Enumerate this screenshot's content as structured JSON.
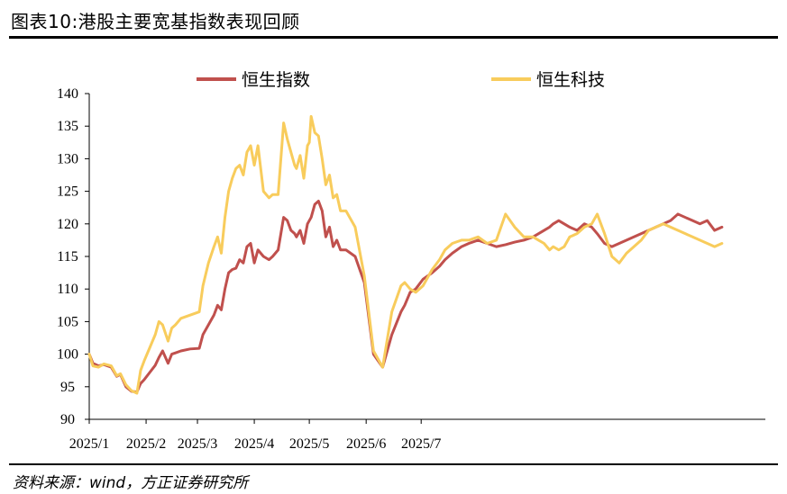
{
  "header": {
    "title": "图表10:港股主要宽基指数表现回顾"
  },
  "footer": {
    "source": "资料来源：wind，方正证券研究所"
  },
  "chart_data": {
    "type": "line",
    "title": "图表10:港股主要宽基指数表现回顾",
    "xlabel": "",
    "ylabel": "",
    "ylim": [
      90,
      140
    ],
    "yticks": [
      90,
      95,
      100,
      105,
      110,
      115,
      120,
      125,
      130,
      135,
      140
    ],
    "xticks": [
      "2025/1",
      "2025/2",
      "2025/3",
      "2025/4",
      "2025/5",
      "2025/6",
      "2025/7"
    ],
    "legend_position": "top",
    "grid": false,
    "colors": {
      "hsi": "#c0504d",
      "hstech": "#f8cc5c",
      "axis": "#000000"
    },
    "series": [
      {
        "name": "恒生指数",
        "color": "#c0504d",
        "x": [
          0,
          2,
          5,
          8,
          12,
          15,
          17,
          20,
          23,
          26,
          28,
          30,
          33,
          36,
          38,
          40,
          43,
          45,
          47,
          50,
          55,
          60,
          62,
          65,
          68,
          70,
          72,
          74,
          76,
          78,
          80,
          82,
          84,
          86,
          88,
          90,
          92,
          95,
          98,
          100,
          103,
          106,
          108,
          110,
          112,
          113,
          115,
          117,
          119,
          120,
          121,
          123,
          125,
          127,
          129,
          131,
          133,
          135,
          137,
          140,
          145,
          150,
          155,
          160,
          165,
          170,
          172,
          175,
          178,
          182,
          187,
          191,
          194,
          198,
          203,
          207,
          212,
          217,
          222,
          227,
          232,
          237,
          242,
          245,
          248,
          251,
          253,
          256,
          259,
          262,
          266,
          270,
          274,
          277,
          281,
          285,
          289,
          293,
          297,
          301,
          305,
          309,
          313,
          317,
          321,
          325,
          329,
          333,
          337,
          341,
          345
        ],
        "values": [
          100.0,
          98.6,
          98.2,
          98.4,
          98.0,
          96.6,
          96.9,
          95.0,
          94.3,
          94.2,
          95.5,
          96.1,
          97.2,
          98.3,
          99.5,
          100.5,
          98.6,
          100.0,
          100.2,
          100.5,
          100.8,
          100.9,
          103.0,
          104.5,
          106.0,
          107.5,
          106.8,
          110.0,
          112.5,
          113.0,
          113.2,
          114.5,
          114.0,
          116.5,
          117.0,
          114.0,
          116.0,
          115.0,
          114.5,
          115.0,
          116.0,
          121.0,
          120.5,
          119.0,
          118.5,
          118.0,
          119.0,
          117.0,
          120.0,
          120.5,
          121.0,
          123.0,
          123.5,
          122.0,
          118.0,
          119.5,
          116.5,
          117.5,
          116.0,
          116.0,
          115.0,
          111.0,
          100.0,
          98.0,
          103.0,
          106.5,
          107.5,
          109.5,
          110.0,
          111.5,
          112.5,
          113.5,
          114.5,
          115.5,
          116.5,
          117.0,
          117.5,
          117.0,
          116.5,
          116.8,
          117.2,
          117.5,
          118.0,
          118.5,
          119.0,
          119.5,
          120.0,
          120.5,
          120.0,
          119.5,
          119.0,
          120.0,
          119.5,
          118.5,
          117.0,
          116.5,
          117.0,
          117.5,
          118.0,
          118.5,
          119.0,
          119.5,
          120.0,
          120.5,
          121.5,
          121.0,
          120.5,
          120.0,
          120.5,
          119.0,
          119.5
        ],
        "x_note": "days since 2025/1/1"
      },
      {
        "name": "恒生科技",
        "color": "#f8cc5c",
        "x": [
          0,
          2,
          5,
          8,
          12,
          15,
          17,
          20,
          23,
          26,
          28,
          30,
          33,
          36,
          38,
          40,
          43,
          45,
          47,
          50,
          55,
          60,
          62,
          65,
          68,
          70,
          72,
          74,
          76,
          78,
          80,
          82,
          84,
          86,
          88,
          90,
          92,
          95,
          98,
          100,
          103,
          106,
          108,
          110,
          112,
          113,
          115,
          117,
          119,
          120,
          121,
          123,
          125,
          127,
          129,
          131,
          133,
          135,
          137,
          140,
          145,
          150,
          155,
          160,
          165,
          170,
          172,
          175,
          178,
          182,
          187,
          191,
          194,
          198,
          203,
          207,
          212,
          217,
          222,
          227,
          232,
          237,
          242,
          245,
          248,
          251,
          253,
          256,
          259,
          262,
          266,
          270,
          274,
          277,
          281,
          285,
          289,
          293,
          297,
          301,
          305,
          309,
          313,
          317,
          321,
          325,
          329,
          333,
          337,
          341,
          345
        ],
        "values": [
          100.0,
          98.2,
          98.0,
          98.5,
          98.2,
          96.7,
          97.0,
          95.3,
          94.4,
          94.0,
          97.5,
          99.0,
          101.0,
          103.0,
          105.0,
          104.5,
          102.0,
          104.0,
          104.5,
          105.5,
          106.0,
          106.5,
          110.5,
          114.0,
          116.5,
          118.0,
          115.5,
          121.0,
          125.0,
          127.0,
          128.5,
          129.0,
          127.5,
          131.0,
          132.0,
          129.0,
          132.0,
          125.0,
          124.0,
          124.5,
          124.5,
          135.5,
          133.0,
          131.0,
          129.0,
          128.5,
          130.5,
          127.0,
          132.0,
          132.5,
          136.5,
          134.0,
          133.5,
          130.0,
          126.0,
          127.5,
          124.0,
          124.5,
          122.0,
          122.0,
          119.5,
          112.0,
          100.5,
          98.0,
          106.5,
          110.5,
          111.0,
          110.0,
          109.5,
          110.5,
          113.0,
          114.5,
          116.0,
          117.0,
          117.5,
          117.5,
          118.0,
          117.0,
          117.5,
          121.5,
          119.5,
          118.0,
          118.0,
          117.5,
          117.0,
          116.0,
          116.5,
          116.0,
          116.5,
          118.0,
          118.5,
          119.5,
          120.0,
          121.5,
          118.5,
          115.0,
          114.0,
          115.5,
          116.5,
          117.5,
          119.0,
          119.5,
          120.0,
          119.5,
          119.0,
          118.5,
          118.0,
          117.5,
          117.0,
          116.5,
          117.0
        ],
        "x_note": "days since 2025/1/1"
      }
    ]
  }
}
